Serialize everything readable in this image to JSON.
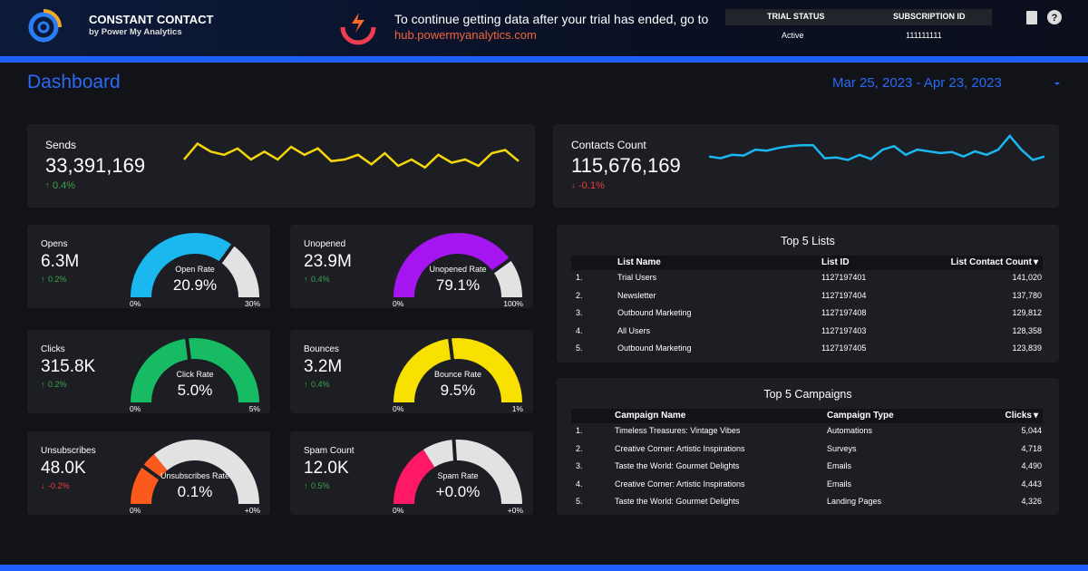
{
  "header": {
    "brand": "CONSTANT CONTACT",
    "byline": "by Power My Analytics",
    "notice": "To continue getting data after your trial has ended, go to",
    "link": "hub.powermyanalytics.com",
    "status_headers": [
      "TRIAL STATUS",
      "SUBSCRIPTION ID"
    ],
    "status_values": [
      "Active",
      "111111111"
    ]
  },
  "title": "Dashboard",
  "date_range": "Mar 25, 2023 - Apr 23, 2023",
  "sparklines": [
    {
      "label": "Sends",
      "value": "33,391,169",
      "change": "0.4%",
      "direction": "up",
      "color": "#f5d60c",
      "points": [
        40,
        90,
        65,
        55,
        75,
        40,
        65,
        40,
        80,
        55,
        75,
        35,
        40,
        55,
        25,
        60,
        20,
        40,
        15,
        55,
        30,
        40,
        20,
        60,
        70,
        35
      ]
    },
    {
      "label": "Contacts Count",
      "value": "115,676,169",
      "change": "-0.1%",
      "direction": "down",
      "color": "#1ab8ef",
      "points": [
        35,
        30,
        40,
        38,
        55,
        52,
        60,
        65,
        68,
        68,
        30,
        32,
        25,
        40,
        28,
        55,
        65,
        40,
        55,
        50,
        45,
        48,
        35,
        50,
        40,
        55,
        95,
        55,
        25,
        35
      ]
    }
  ],
  "gauges": [
    {
      "label": "Opens",
      "value": "6.3M",
      "change": "0.2%",
      "direction": "up",
      "rate_label": "Open Rate",
      "rate": "20.9%",
      "min": "0%",
      "max": "30%",
      "color": "#1ab8ef",
      "arc": 70,
      "marker": 70
    },
    {
      "label": "Unopened",
      "value": "23.9M",
      "change": "0.4%",
      "direction": "up",
      "rate_label": "Unopened Rate",
      "rate": "79.1%",
      "min": "0%",
      "max": "100%",
      "color": "#a515f0",
      "arc": 80,
      "marker": 80
    },
    {
      "label": "Clicks",
      "value": "315.8K",
      "change": "0.2%",
      "direction": "up",
      "rate_label": "Click Rate",
      "rate": "5.0%",
      "min": "0%",
      "max": "5%",
      "color": "#17bb63",
      "arc": 100,
      "marker": 46
    },
    {
      "label": "Bounces",
      "value": "3.2M",
      "change": "0.4%",
      "direction": "up",
      "rate_label": "Bounce Rate",
      "rate": "9.5%",
      "min": "0%",
      "max": "1%",
      "color": "#f8e000",
      "arc": 100,
      "marker": 46
    },
    {
      "label": "Unsubscribes",
      "value": "48.0K",
      "change": "-0.2%",
      "direction": "down",
      "rate_label": "Unsubscribes Rate",
      "rate": "0.1%",
      "min": "0%",
      "max": "+0%",
      "color": "#fb5a1c",
      "arc": 28,
      "marker": 20
    },
    {
      "label": "Spam Count",
      "value": "12.0K",
      "change": "0.5%",
      "direction": "up",
      "rate_label": "Spam Rate",
      "rate": "+0.0%",
      "min": "0%",
      "max": "+0%",
      "color": "#ff1866",
      "arc": 32,
      "marker": 48
    }
  ],
  "lists": {
    "title": "Top 5 Lists",
    "columns": [
      "List Name",
      "List ID",
      "List Contact Count"
    ],
    "rows": [
      [
        "1.",
        "Trial Users",
        "1127197401",
        "141,020"
      ],
      [
        "2.",
        "Newsletter",
        "1127197404",
        "137,780"
      ],
      [
        "3.",
        "Outbound Marketing",
        "1127197408",
        "129,812"
      ],
      [
        "4.",
        "All Users",
        "1127197403",
        "128,358"
      ],
      [
        "5.",
        "Outbound Marketing",
        "1127197405",
        "123,839"
      ]
    ]
  },
  "campaigns": {
    "title": "Top 5 Campaigns",
    "columns": [
      "Campaign Name",
      "Campaign Type",
      "Clicks"
    ],
    "rows": [
      [
        "1.",
        "Timeless Treasures: Vintage Vibes",
        "Automations",
        "5,044"
      ],
      [
        "2.",
        "Creative Corner: Artistic Inspirations",
        "Surveys",
        "4,718"
      ],
      [
        "3.",
        "Taste the World: Gourmet Delights",
        "Emails",
        "4,490"
      ],
      [
        "4.",
        "Creative Corner: Artistic Inspirations",
        "Emails",
        "4,443"
      ],
      [
        "5.",
        "Taste the World: Gourmet Delights",
        "Landing Pages",
        "4,326"
      ]
    ]
  }
}
